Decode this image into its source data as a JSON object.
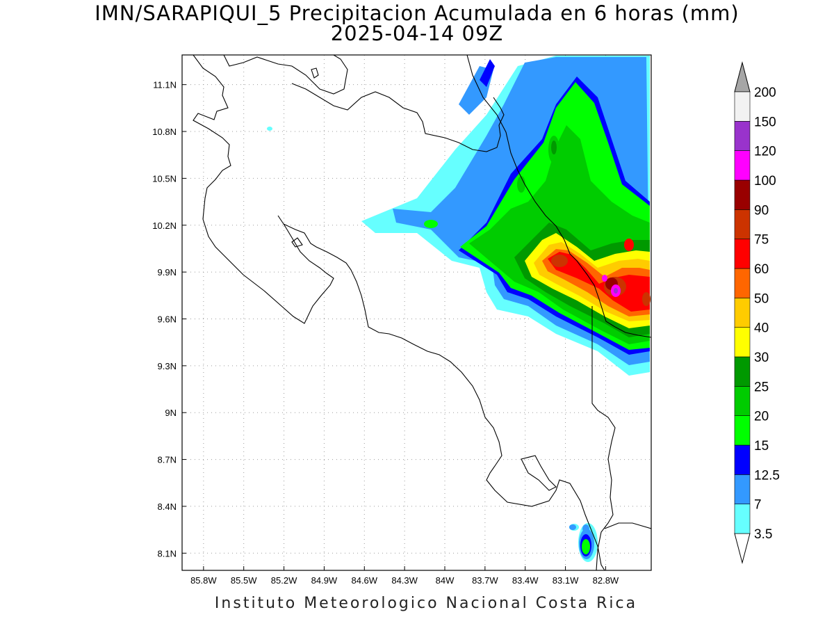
{
  "title": "IMN/SARAPIQUI_5 Precipitacion Acumulada en 6 horas (mm)",
  "subtitle": "2025-04-14 09Z",
  "footer": "Instituto Meteorologico Nacional Costa Rica",
  "map": {
    "lon_range": [
      -85.96,
      -82.46
    ],
    "lat_range": [
      7.99,
      11.29
    ],
    "lon_ticks": [
      "85.8W",
      "85.5W",
      "85.2W",
      "84.9W",
      "84.6W",
      "84.3W",
      "84W",
      "83.7W",
      "83.4W",
      "83.1W",
      "82.8W"
    ],
    "lat_ticks": [
      "8.1N",
      "8.4N",
      "8.7N",
      "9N",
      "9.3N",
      "9.6N",
      "9.9N",
      "10.2N",
      "10.5N",
      "10.8N",
      "11.1N"
    ],
    "grid": "dotted"
  },
  "colorbar": {
    "levels": [
      "3.5",
      "7",
      "12.5",
      "15",
      "20",
      "25",
      "30",
      "40",
      "50",
      "60",
      "75",
      "90",
      "100",
      "120",
      "150",
      "200"
    ],
    "colors": [
      "#66ffff",
      "#3399ff",
      "#0000ff",
      "#00ff00",
      "#00cc00",
      "#009900",
      "#ffff00",
      "#ffcc00",
      "#ff6600",
      "#ff0000",
      "#cc3300",
      "#990000",
      "#ff00ff",
      "#9933cc",
      "#f2f2f2"
    ],
    "over_color": "#a6a6a6",
    "under_color": "#ffffff"
  }
}
